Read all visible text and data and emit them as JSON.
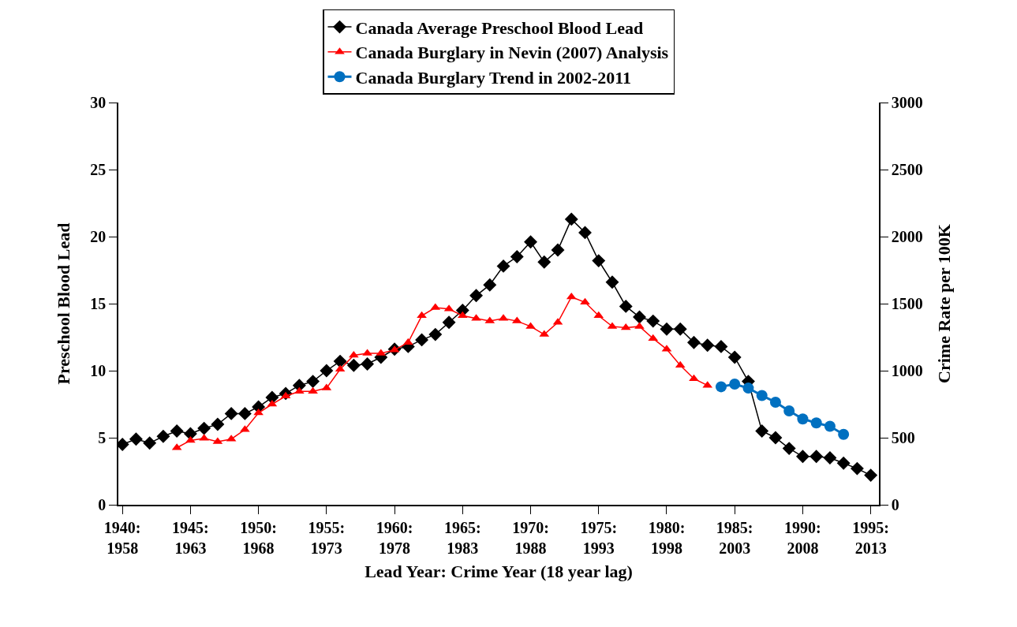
{
  "chart_data": {
    "type": "line",
    "xlabel": "Lead Year: Crime Year (18 year lag)",
    "ylabel": "Preschool Blood Lead",
    "y2label": "Crime Rate per 100K",
    "categories": [
      "1940:\n1958",
      null,
      null,
      null,
      null,
      "1945:\n1963",
      null,
      null,
      null,
      null,
      "1950:\n1968",
      null,
      null,
      null,
      null,
      "1955:\n1973",
      null,
      null,
      null,
      null,
      "1960:\n1978",
      null,
      null,
      null,
      null,
      "1965:\n1983",
      null,
      null,
      null,
      null,
      "1970:\n1988",
      null,
      null,
      null,
      null,
      "1975:\n1993",
      null,
      null,
      null,
      null,
      "1980:\n1998",
      null,
      null,
      null,
      null,
      "1985:\n2003",
      null,
      null,
      null,
      null,
      "1990:\n2008",
      null,
      null,
      null,
      null,
      "1995:\n2013"
    ],
    "ylim": [
      0,
      30
    ],
    "yticks": [
      0,
      5,
      10,
      15,
      20,
      25,
      30
    ],
    "y2lim": [
      0,
      3000
    ],
    "y2ticks": [
      0,
      500,
      1000,
      1500,
      2000,
      2500,
      3000
    ],
    "grid": false,
    "legend": "top",
    "series": [
      {
        "name": "Canada Average Preschool Blood Lead",
        "color": "#000000",
        "marker": "diamond",
        "values": [
          4.5,
          4.9,
          4.6,
          5.1,
          5.5,
          5.3,
          5.7,
          6.0,
          6.8,
          6.8,
          7.3,
          8.0,
          8.3,
          8.9,
          9.2,
          10.0,
          10.7,
          10.4,
          10.5,
          11.0,
          11.6,
          11.8,
          12.3,
          12.7,
          13.6,
          14.5,
          15.6,
          16.4,
          17.8,
          18.5,
          19.6,
          18.1,
          19.0,
          21.3,
          20.3,
          18.2,
          16.6,
          14.8,
          14.0,
          13.7,
          13.1,
          13.1,
          12.1,
          11.9,
          11.8,
          11.0,
          9.2,
          5.5,
          5.0,
          4.2,
          3.6,
          3.6,
          3.5,
          3.1,
          2.7,
          2.2
        ]
      },
      {
        "name": "Canada Burglary in Nevin (2007) Analysis",
        "color": "#ff0000",
        "marker": "triangle",
        "axis": "y2",
        "values": [
          null,
          null,
          null,
          null,
          425,
          480,
          495,
          470,
          490,
          560,
          685,
          750,
          810,
          845,
          845,
          870,
          1010,
          1115,
          1130,
          1130,
          1155,
          1210,
          1410,
          1470,
          1460,
          1410,
          1390,
          1370,
          1390,
          1370,
          1330,
          1270,
          1360,
          1550,
          1510,
          1410,
          1330,
          1320,
          1330,
          1240,
          1160,
          1040,
          940,
          890,
          null,
          null,
          null,
          null,
          null,
          null,
          null,
          null,
          null,
          null,
          null,
          null
        ]
      },
      {
        "name": "Canada Burglary Trend in 2002-2011",
        "color": "#0070c0",
        "marker": "circle",
        "axis": "y2",
        "values": [
          null,
          null,
          null,
          null,
          null,
          null,
          null,
          null,
          null,
          null,
          null,
          null,
          null,
          null,
          null,
          null,
          null,
          null,
          null,
          null,
          null,
          null,
          null,
          null,
          null,
          null,
          null,
          null,
          null,
          null,
          null,
          null,
          null,
          null,
          null,
          null,
          null,
          null,
          null,
          null,
          null,
          null,
          null,
          null,
          880,
          900,
          870,
          815,
          765,
          700,
          640,
          610,
          585,
          525,
          null,
          null
        ]
      }
    ]
  }
}
